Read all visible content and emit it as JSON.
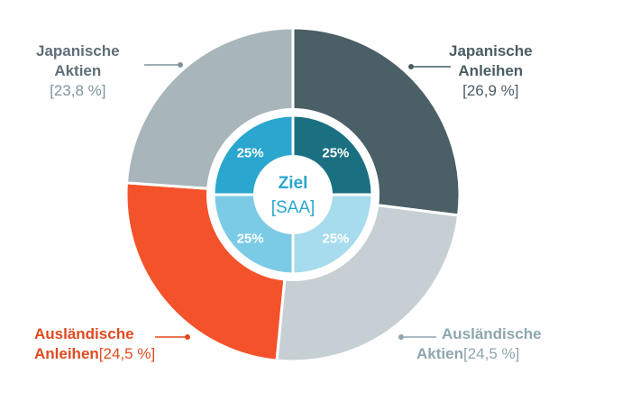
{
  "chart_data": {
    "type": "pie",
    "center_label": {
      "title": "Ziel",
      "subtitle": "[SAA]"
    },
    "outer": {
      "slices": [
        {
          "name_lines": [
            "Japanische",
            "Anleihen"
          ],
          "percent_label": "[26,9 %]",
          "value": 26.9,
          "color": "#4a5f66",
          "label_color": "#4a5d63"
        },
        {
          "name_lines": [
            "Ausländische",
            "Aktien"
          ],
          "percent_label": "[24,5 %]",
          "value": 24.5,
          "color": "#c6d0d4",
          "label_color": "#8ea6ae"
        },
        {
          "name_lines": [
            "Ausländische",
            "Anleihen"
          ],
          "percent_label": "[24,5 %]",
          "value": 24.5,
          "color": "#f4522a",
          "label_color": "#e04a1f"
        },
        {
          "name_lines": [
            "Japanische",
            "Aktien"
          ],
          "percent_label": "[23,8 %]",
          "value": 23.8,
          "color": "#a8b6bb",
          "label_color": "#5f6f78"
        }
      ]
    },
    "inner": {
      "slices": [
        {
          "label": "25%",
          "value": 25,
          "color": "#1a7080"
        },
        {
          "label": "25%",
          "value": 25,
          "color": "#a6dced"
        },
        {
          "label": "25%",
          "value": 25,
          "color": "#7ccbe6"
        },
        {
          "label": "25%",
          "value": 25,
          "color": "#2aa6cf"
        }
      ]
    }
  }
}
